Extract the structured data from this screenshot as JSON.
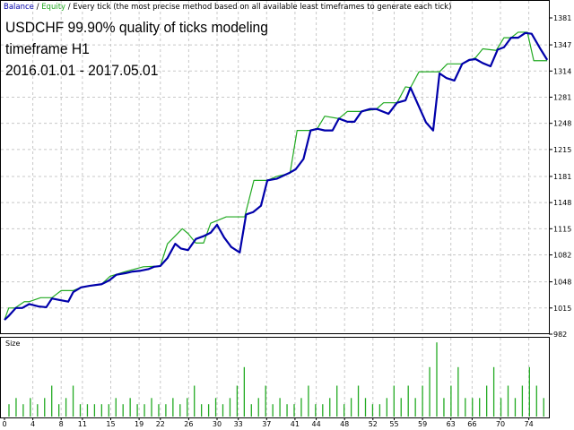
{
  "header": {
    "balance_label": "Balance",
    "sep1": " / ",
    "equity_label": "Equity",
    "sep2": " / ",
    "method": "Every tick (the most precise method based on all available least timeframes to generate each tick)"
  },
  "titles": {
    "line1": "USDCHF 99.90% quality of ticks modeling",
    "line2": "timeframe H1",
    "line3": "2016.01.01 - 2017.05.01"
  },
  "colors": {
    "balance": "#0000aa",
    "equity": "#22aa22",
    "size": "#22aa22",
    "grid": "#c8c8c8"
  },
  "chart_data": [
    {
      "type": "line",
      "ylim": [
        982,
        1381
      ],
      "y_ticks": [
        "1381",
        "1347",
        "1314",
        "1281",
        "1248",
        "1215",
        "1181",
        "1148",
        "1115",
        "1082",
        "1048",
        "1015",
        "982"
      ],
      "x_ticks": [
        "0",
        "4",
        "8",
        "11",
        "15",
        "19",
        "22",
        "26",
        "30",
        "33",
        "37",
        "41",
        "44",
        "48",
        "52",
        "55",
        "59",
        "63",
        "66",
        "70",
        "74"
      ],
      "grid": true,
      "series": [
        {
          "name": "Balance",
          "color": "#0000aa",
          "points": [
            [
              0,
              1000
            ],
            [
              0.6,
              1005
            ],
            [
              1.6,
              1015
            ],
            [
              2.5,
              1015
            ],
            [
              3.5,
              1020
            ],
            [
              4.8,
              1017
            ],
            [
              5.9,
              1016
            ],
            [
              6.7,
              1027
            ],
            [
              7.8,
              1025
            ],
            [
              9,
              1023
            ],
            [
              9.7,
              1035
            ],
            [
              10.8,
              1041
            ],
            [
              12,
              1043
            ],
            [
              13.7,
              1045
            ],
            [
              14.8,
              1050
            ],
            [
              15.8,
              1057
            ],
            [
              17.1,
              1059
            ],
            [
              18.1,
              1061
            ],
            [
              19.2,
              1062
            ],
            [
              20.3,
              1064
            ],
            [
              21.1,
              1067
            ],
            [
              22,
              1068
            ],
            [
              23,
              1078
            ],
            [
              24.1,
              1096
            ],
            [
              24.9,
              1090
            ],
            [
              25.9,
              1088
            ],
            [
              27,
              1102
            ],
            [
              28.2,
              1106
            ],
            [
              29.1,
              1110
            ],
            [
              30,
              1120
            ],
            [
              31,
              1104
            ],
            [
              32,
              1092
            ],
            [
              33.2,
              1085
            ],
            [
              34.1,
              1133
            ],
            [
              35.1,
              1136
            ],
            [
              36.2,
              1144
            ],
            [
              37.1,
              1176
            ],
            [
              38.4,
              1178
            ],
            [
              40.1,
              1185
            ],
            [
              41.1,
              1190
            ],
            [
              42.2,
              1203
            ],
            [
              43.2,
              1239
            ],
            [
              44.2,
              1241
            ],
            [
              45.2,
              1239
            ],
            [
              46.3,
              1239
            ],
            [
              47.2,
              1254
            ],
            [
              48.4,
              1250
            ],
            [
              49.4,
              1250
            ],
            [
              50.4,
              1263
            ],
            [
              51.6,
              1266
            ],
            [
              52.5,
              1266
            ],
            [
              54.2,
              1260
            ],
            [
              55.4,
              1274
            ],
            [
              56.6,
              1277
            ],
            [
              57.3,
              1293
            ],
            [
              59.5,
              1249
            ],
            [
              60.5,
              1239
            ],
            [
              61.4,
              1311
            ],
            [
              62.4,
              1305
            ],
            [
              63.5,
              1302
            ],
            [
              64.6,
              1323
            ],
            [
              65.6,
              1328
            ],
            [
              66.5,
              1329
            ],
            [
              67.5,
              1324
            ],
            [
              68.6,
              1320
            ],
            [
              69.6,
              1341
            ],
            [
              70.5,
              1344
            ],
            [
              71.5,
              1356
            ],
            [
              72.5,
              1356
            ],
            [
              73.5,
              1362
            ],
            [
              74.4,
              1361
            ],
            [
              75.7,
              1341
            ],
            [
              76.6,
              1328
            ]
          ]
        },
        {
          "name": "Equity",
          "color": "#22aa22",
          "points": [
            [
              0,
              1000
            ],
            [
              0.6,
              1015
            ],
            [
              1.5,
              1015
            ],
            [
              2.8,
              1023
            ],
            [
              3.5,
              1023
            ],
            [
              5.1,
              1028
            ],
            [
              6.7,
              1028
            ],
            [
              8,
              1037
            ],
            [
              9.7,
              1037
            ],
            [
              10.8,
              1041
            ],
            [
              13.7,
              1045
            ],
            [
              14.9,
              1055
            ],
            [
              17.1,
              1061
            ],
            [
              19.6,
              1067
            ],
            [
              22,
              1068
            ],
            [
              23,
              1096
            ],
            [
              25.1,
              1115
            ],
            [
              25.9,
              1109
            ],
            [
              27,
              1097
            ],
            [
              28.1,
              1097
            ],
            [
              29.1,
              1122
            ],
            [
              31.3,
              1130
            ],
            [
              33.9,
              1130
            ],
            [
              35.2,
              1176
            ],
            [
              37.1,
              1176
            ],
            [
              38.4,
              1181
            ],
            [
              40.3,
              1185
            ],
            [
              41.3,
              1239
            ],
            [
              43.2,
              1239
            ],
            [
              44.2,
              1242
            ],
            [
              45.2,
              1257
            ],
            [
              47.2,
              1254
            ],
            [
              48.4,
              1263
            ],
            [
              50.4,
              1263
            ],
            [
              52.5,
              1266
            ],
            [
              53.5,
              1274
            ],
            [
              55.4,
              1274
            ],
            [
              56.6,
              1294
            ],
            [
              57.3,
              1293
            ],
            [
              58.5,
              1313
            ],
            [
              61.4,
              1313
            ],
            [
              62.5,
              1323
            ],
            [
              64.6,
              1323
            ],
            [
              66.5,
              1331
            ],
            [
              67.5,
              1342
            ],
            [
              69.4,
              1340
            ],
            [
              70.5,
              1356
            ],
            [
              71.5,
              1356
            ],
            [
              72.5,
              1363
            ],
            [
              73.8,
              1363
            ],
            [
              74.7,
              1327
            ],
            [
              76.6,
              1327
            ]
          ]
        }
      ]
    },
    {
      "type": "bar",
      "title": "Size",
      "values": [
        2,
        3,
        2,
        3,
        2,
        3,
        5,
        2,
        3,
        5,
        2,
        2,
        2,
        2,
        2,
        3,
        2,
        3,
        2,
        2,
        3,
        2,
        2,
        3,
        2,
        3,
        5,
        2,
        2,
        3,
        2,
        3,
        5,
        8,
        2,
        3,
        5,
        2,
        3,
        2,
        2,
        3,
        5,
        2,
        2,
        3,
        5,
        2,
        3,
        5,
        3,
        2,
        2,
        3,
        5,
        3,
        5,
        3,
        5,
        8,
        12,
        3,
        5,
        8,
        3,
        3,
        3,
        5,
        8,
        3,
        5,
        3,
        5,
        8,
        5,
        3
      ],
      "color": "#22aa22"
    }
  ]
}
